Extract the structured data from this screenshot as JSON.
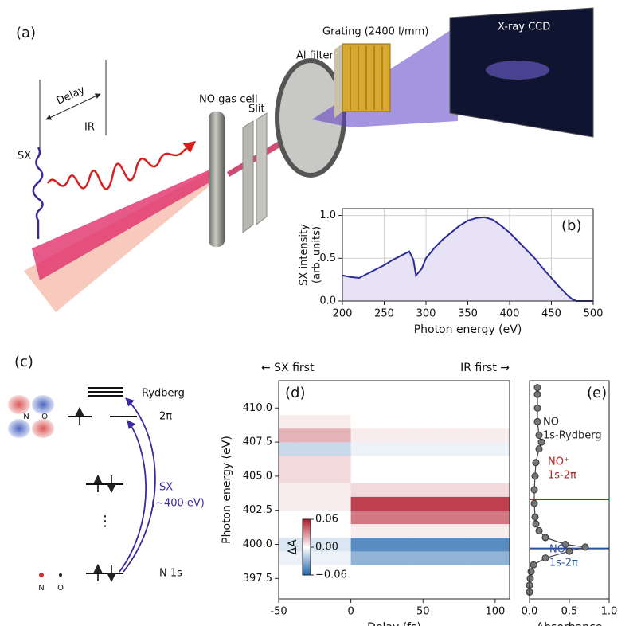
{
  "schematic": {
    "label": "(a)",
    "delay": "Delay",
    "sx": "SX",
    "ir": "IR",
    "gas_cell": "NO gas cell",
    "slit": "Slit",
    "filter": "Al filter",
    "grating": "Grating (2400 l/mm)",
    "detector": "X-ray CCD"
  },
  "level_diagram": {
    "label": "(c)",
    "levels": [
      "Rydberg",
      "2π",
      "N 1s"
    ],
    "excitation": [
      "SX",
      "(~400 eV)"
    ],
    "ellipsis": "⋮",
    "atoms": [
      "N",
      "O"
    ]
  },
  "chart_data": [
    {
      "type": "line",
      "panel_label": "(b)",
      "xlabel": "Photon energy (eV)",
      "ylabel": [
        "SX intensity",
        "(arb. units)"
      ],
      "x": [
        200,
        210,
        220,
        230,
        240,
        250,
        260,
        270,
        280,
        285,
        288,
        295,
        300,
        310,
        320,
        330,
        340,
        350,
        360,
        370,
        380,
        390,
        400,
        410,
        420,
        430,
        440,
        450,
        460,
        470,
        475,
        480,
        500
      ],
      "values": [
        0.3,
        0.28,
        0.27,
        0.32,
        0.37,
        0.42,
        0.48,
        0.53,
        0.58,
        0.48,
        0.3,
        0.38,
        0.5,
        0.62,
        0.72,
        0.8,
        0.88,
        0.94,
        0.97,
        0.98,
        0.95,
        0.88,
        0.8,
        0.7,
        0.6,
        0.5,
        0.38,
        0.27,
        0.16,
        0.06,
        0.02,
        0,
        0
      ],
      "color": "#2a2a9a",
      "fill": "#e8e2f6",
      "xlim": [
        200,
        500
      ],
      "xticks": [
        200,
        250,
        300,
        350,
        400,
        450,
        500
      ],
      "ylim": [
        0,
        1.08
      ],
      "yticks": [
        {
          "value": 0,
          "label": "0.0"
        },
        {
          "value": 0.5,
          "label": "0.5"
        },
        {
          "value": 1,
          "label": "1.0"
        }
      ],
      "grid": true
    },
    {
      "type": "heatmap",
      "panel_label": "(d)",
      "xlabel": "Delay (fs)",
      "ylabel": "Photon energy (eV)",
      "annotations": [
        "← SX first",
        "IR first →"
      ],
      "x": [
        -45,
        -35,
        -25,
        -15,
        -5,
        5,
        15,
        25,
        35,
        45,
        55,
        65,
        75,
        85,
        95,
        105
      ],
      "y": [
        397,
        398,
        399,
        400,
        401,
        402,
        403,
        404,
        405,
        406,
        407,
        408,
        409,
        410,
        411
      ],
      "z": [
        [
          0,
          0,
          0,
          0,
          0,
          0,
          0,
          0,
          0,
          0,
          0,
          0,
          0,
          0,
          0,
          0
        ],
        [
          0,
          0,
          0,
          0,
          0,
          0,
          0,
          0,
          0,
          0,
          0,
          0,
          0,
          0,
          0,
          0
        ],
        [
          -0.005,
          -0.005,
          -0.005,
          -0.005,
          -0.005,
          -0.03,
          -0.03,
          -0.03,
          -0.03,
          -0.03,
          -0.03,
          -0.03,
          -0.03,
          -0.03,
          -0.03,
          -0.03
        ],
        [
          -0.01,
          -0.01,
          -0.01,
          -0.01,
          -0.01,
          -0.045,
          -0.045,
          -0.045,
          -0.045,
          -0.045,
          -0.045,
          -0.045,
          -0.045,
          -0.045,
          -0.045,
          -0.045
        ],
        [
          0,
          0,
          0,
          0,
          0,
          0.005,
          0.005,
          0.005,
          0.005,
          0.005,
          0.005,
          0.005,
          0.005,
          0.005,
          0.005,
          0.005
        ],
        [
          0,
          0,
          0,
          0,
          0,
          0.035,
          0.035,
          0.035,
          0.035,
          0.035,
          0.035,
          0.035,
          0.035,
          0.035,
          0.035,
          0.035
        ],
        [
          0.005,
          0.005,
          0.005,
          0.005,
          0.005,
          0.05,
          0.05,
          0.05,
          0.05,
          0.05,
          0.05,
          0.05,
          0.05,
          0.05,
          0.05,
          0.05
        ],
        [
          0.005,
          0.005,
          0.005,
          0.005,
          0.005,
          0.01,
          0.01,
          0.01,
          0.01,
          0.01,
          0.01,
          0.01,
          0.01,
          0.01,
          0.01,
          0.01
        ],
        [
          0.01,
          0.01,
          0.01,
          0.01,
          0.01,
          0,
          0,
          0,
          0,
          0,
          0,
          0,
          0,
          0,
          0,
          0
        ],
        [
          0.01,
          0.01,
          0.01,
          0.01,
          0.01,
          0,
          0,
          0,
          0,
          0,
          0,
          0,
          0,
          0,
          0,
          0
        ],
        [
          -0.015,
          -0.015,
          -0.015,
          -0.015,
          -0.015,
          -0.005,
          -0.005,
          -0.005,
          -0.005,
          -0.005,
          -0.005,
          -0.005,
          -0.005,
          -0.005,
          -0.005,
          -0.005
        ],
        [
          0.02,
          0.02,
          0.02,
          0.02,
          0.02,
          0.005,
          0.005,
          0.005,
          0.005,
          0.005,
          0.005,
          0.005,
          0.005,
          0.005,
          0.005,
          0.005
        ],
        [
          0.005,
          0.005,
          0.005,
          0.005,
          0.005,
          0,
          0,
          0,
          0,
          0,
          0,
          0,
          0,
          0,
          0,
          0
        ],
        [
          0,
          0,
          0,
          0,
          0,
          0,
          0,
          0,
          0,
          0,
          0,
          0,
          0,
          0,
          0,
          0
        ],
        [
          0,
          0,
          0,
          0,
          0,
          0,
          0,
          0,
          0,
          0,
          0,
          0,
          0,
          0,
          0,
          0
        ]
      ],
      "xlim": [
        -50,
        110
      ],
      "xticks": [
        -50,
        0,
        50,
        100
      ],
      "ylim": [
        396,
        412
      ],
      "yticks": [
        397.5,
        {
          "value": 400,
          "label": "400.0"
        },
        402.5,
        {
          "value": 405,
          "label": "405.0"
        },
        407.5,
        {
          "value": 410,
          "label": "410.0"
        }
      ],
      "colorbar_label": "ΔA",
      "clim": [
        -0.06,
        0.06
      ],
      "cticks": [
        {
          "value": 0.06,
          "label": "0.06"
        },
        {
          "value": 0,
          "label": "0.00"
        },
        {
          "value": -0.06,
          "label": "−0.06"
        }
      ]
    },
    {
      "type": "scatter",
      "panel_label": "(e)",
      "xlabel": "Absorbance",
      "x": [
        0,
        0,
        0.01,
        0.02,
        0.05,
        0.2,
        0.5,
        0.7,
        0.45,
        0.2,
        0.12,
        0.08,
        0.07,
        0.06,
        0.06,
        0.07,
        0.08,
        0.12,
        0.15,
        0.12,
        0.1,
        0.1,
        0.1,
        0.1
      ],
      "y": [
        396.5,
        397,
        397.5,
        398,
        398.5,
        399,
        399.5,
        399.8,
        400,
        400.5,
        401,
        401.5,
        402,
        403,
        404,
        405,
        406,
        407,
        407.5,
        408,
        409,
        410,
        411,
        411.5
      ],
      "color": "#777777",
      "xlim": [
        0,
        1
      ],
      "xticks": [
        {
          "value": 0,
          "label": "0.0"
        },
        {
          "value": 0.5,
          "label": "0.5"
        },
        {
          "value": 1,
          "label": "1.0"
        }
      ],
      "ylim": [
        396,
        412
      ],
      "lines_at": [
        {
          "value": 403.3,
          "color": "#b22222"
        },
        {
          "value": 399.7,
          "color": "#2a4fa0"
        }
      ],
      "annotations": [
        {
          "lines": [
            "NO",
            "1s-Rydberg"
          ],
          "color": "#222222"
        },
        {
          "lines": [
            "NO⁺",
            "1s-2π"
          ],
          "color": "#b22222"
        },
        {
          "lines": [
            "NO",
            "1s-2π"
          ],
          "color": "#2a4fa0"
        }
      ]
    }
  ]
}
